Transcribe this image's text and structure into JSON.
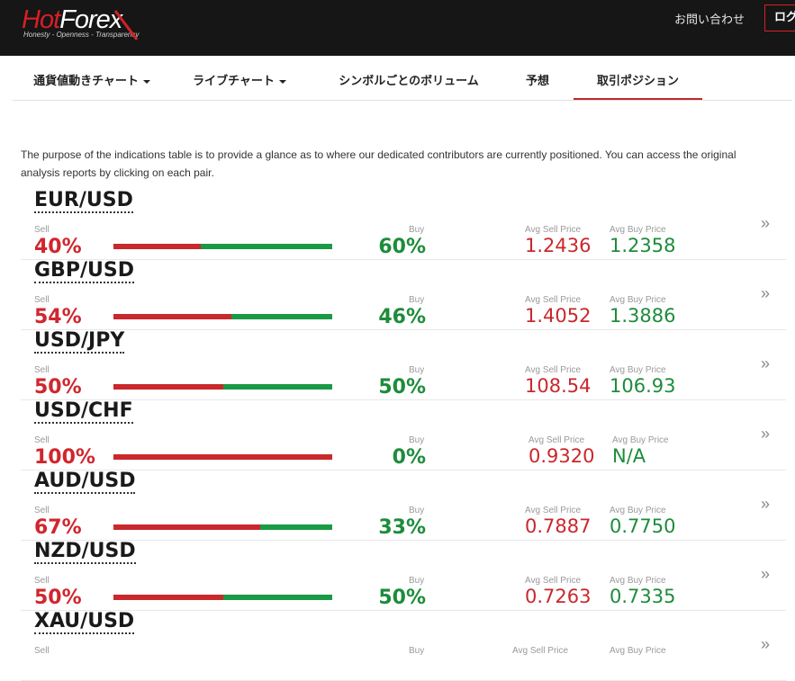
{
  "header": {
    "logo_text_hot": "Hot",
    "logo_text_forex": "Forex",
    "logo_tagline": "Honesty - Openness - Transparency",
    "contact_label": "お問い合わせ",
    "login_label": "ログイン"
  },
  "tabs": [
    {
      "label": "通貨値動きチャート",
      "has_dropdown": true,
      "active": false
    },
    {
      "label": "ライブチャート",
      "has_dropdown": true,
      "active": false
    },
    {
      "label": "シンボルごとのボリューム",
      "has_dropdown": false,
      "active": false
    },
    {
      "label": "予想",
      "has_dropdown": false,
      "active": false
    },
    {
      "label": "取引ポジション",
      "has_dropdown": false,
      "active": true
    }
  ],
  "intro": "The purpose of the indications table is to provide a glance as to where our dedicated contributors are currently positioned. You can access the original analysis reports by clicking on each pair.",
  "labels": {
    "sell": "Sell",
    "buy": "Buy",
    "avg_sell": "Avg Sell Price",
    "avg_buy": "Avg Buy Price"
  },
  "colors": {
    "sell": "#c9282d",
    "buy": "#1b9a45",
    "accent": "#d71f26"
  },
  "pairs": [
    {
      "name": "EUR/USD",
      "sell_pct": "40%",
      "buy_pct": "60%",
      "sell_fraction": 0.4,
      "avg_sell": "1.2436",
      "avg_buy": "1.2358"
    },
    {
      "name": "GBP/USD",
      "sell_pct": "54%",
      "buy_pct": "46%",
      "sell_fraction": 0.54,
      "avg_sell": "1.4052",
      "avg_buy": "1.3886"
    },
    {
      "name": "USD/JPY",
      "sell_pct": "50%",
      "buy_pct": "50%",
      "sell_fraction": 0.5,
      "avg_sell": "108.54",
      "avg_buy": "106.93"
    },
    {
      "name": "USD/CHF",
      "sell_pct": "100%",
      "buy_pct": "0%",
      "sell_fraction": 1.0,
      "avg_sell": "0.9320",
      "avg_buy": "N/A"
    },
    {
      "name": "AUD/USD",
      "sell_pct": "67%",
      "buy_pct": "33%",
      "sell_fraction": 0.67,
      "avg_sell": "0.7887",
      "avg_buy": "0.7750"
    },
    {
      "name": "NZD/USD",
      "sell_pct": "50%",
      "buy_pct": "50%",
      "sell_fraction": 0.5,
      "avg_sell": "0.7263",
      "avg_buy": "0.7335"
    },
    {
      "name": "XAU/USD",
      "sell_pct": "",
      "buy_pct": "",
      "sell_fraction": null,
      "avg_sell": "",
      "avg_buy": ""
    }
  ]
}
